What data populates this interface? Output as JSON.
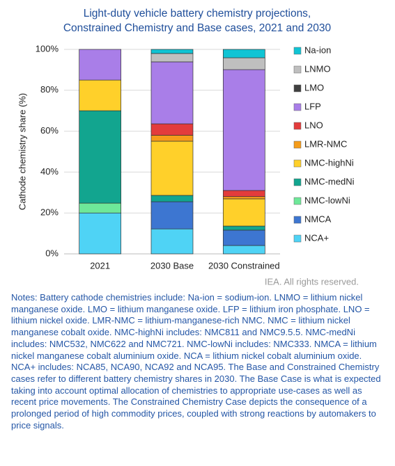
{
  "chart_data": {
    "type": "stacked_bar",
    "title": [
      "Light-duty vehicle battery chemistry projections,",
      "Constrained Chemistry and Base cases, 2021 and 2030"
    ],
    "y_label": "Cathode chemistry share (%)",
    "categories": [
      "2021",
      "2030 Base",
      "2030 Constrained"
    ],
    "ylim": [
      0,
      100
    ],
    "yticks": [
      {
        "value": 0,
        "label": "0%"
      },
      {
        "value": 20,
        "label": "20%"
      },
      {
        "value": 40,
        "label": "40%"
      },
      {
        "value": 60,
        "label": "60%"
      },
      {
        "value": 80,
        "label": "80%"
      },
      {
        "value": 100,
        "label": "100%"
      }
    ],
    "grid": true,
    "legend": "right",
    "series": [
      {
        "name": "NCA+",
        "color": "#4fd3f5",
        "values": [
          20,
          12.2,
          4.1
        ]
      },
      {
        "name": "NMCA",
        "color": "#3d76d1",
        "values": [
          0,
          13.3,
          7.5
        ]
      },
      {
        "name": "NMC-lowNi",
        "color": "#6ee899",
        "values": [
          4.8,
          0,
          0
        ]
      },
      {
        "name": "NMC-medNi",
        "color": "#12a58f",
        "values": [
          45.2,
          3.1,
          2
        ]
      },
      {
        "name": "NMC-highNi",
        "color": "#ffd02a",
        "values": [
          15,
          26.5,
          13.3
        ]
      },
      {
        "name": "LMR-NMC",
        "color": "#f59c1a",
        "values": [
          0,
          2.9,
          1.1
        ]
      },
      {
        "name": "LNO",
        "color": "#e33c3c",
        "values": [
          0,
          5.6,
          3
        ]
      },
      {
        "name": "LFP",
        "color": "#a97ee8",
        "values": [
          15,
          30.3,
          59.1
        ]
      },
      {
        "name": "LMO",
        "color": "#404040",
        "values": [
          0,
          0,
          0
        ]
      },
      {
        "name": "LNMO",
        "color": "#bfbfbf",
        "values": [
          0,
          4.1,
          5.8
        ]
      },
      {
        "name": "Na-ion",
        "color": "#10c4d4",
        "values": [
          0,
          2,
          4.1
        ]
      }
    ],
    "source": "IEA. All rights reserved.",
    "notes": "Notes: Battery cathode chemistries include:  Na-ion = sodium-ion. LNMO = lithium nickel manganese oxide. LMO = lithium manganese oxide. LFP = lithium iron phosphate. LNO = lithium nickel oxide. LMR-NMC = lithium-manganese-rich NMC. NMC = lithium nickel manganese cobalt oxide. NMC-highNi includes: NMC811 and NMC9.5.5. NMC-medNi includes: NMC532, NMC622 and NMC721. NMC-lowNi includes: NMC333. NMCA = lithium nickel manganese cobalt aluminium oxide. NCA = lithium nickel cobalt aluminium oxide. NCA+ includes: NCA85, NCA90, NCA92 and NCA95.  The Base and Constrained Chemistry cases refer to different battery chemistry shares in 2030. The Base Case is what is expected taking into account optimal allocation of chemistries to appropriate use-cases as well as recent price movements. The Constrained Chemistry Case depicts the consequence of a prolonged period of high commodity prices, coupled with strong reactions by automakers to price signals."
  }
}
